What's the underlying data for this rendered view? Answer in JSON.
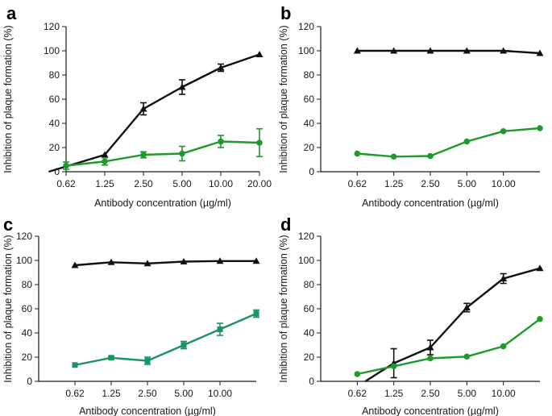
{
  "colors": {
    "black_series": "#111111",
    "green_series": "#1e9a2a",
    "teal_series": "#1a9463",
    "axis": "#1a1a1a"
  },
  "chart_data": [
    {
      "panel": "a",
      "type": "line",
      "xlabel": "Antibody concentration (µg/ml)",
      "ylabel": "Inhibition of plaque formation (%)",
      "categories": [
        "0.62",
        "1.25",
        "2.50",
        "5.00",
        "10.00",
        "20.00"
      ],
      "ylim": [
        0,
        120
      ],
      "yticks": [
        0,
        20,
        40,
        60,
        80,
        100,
        120
      ],
      "grid": false,
      "series": [
        {
          "color": "black",
          "marker": "triangle",
          "x": [
            -0.45,
            1,
            2,
            3,
            4,
            5
          ],
          "values": [
            0,
            14,
            52,
            70,
            86,
            97
          ],
          "errors": [
            null,
            null,
            5,
            6,
            3,
            null
          ]
        },
        {
          "color": "green",
          "marker": "circle",
          "x": [
            0,
            1,
            2,
            3,
            4,
            5
          ],
          "values": [
            5,
            8.5,
            14,
            15,
            25,
            24
          ],
          "errors": [
            3,
            3,
            2.5,
            6,
            5,
            11.5
          ]
        }
      ]
    },
    {
      "panel": "b",
      "type": "line",
      "xlabel": "Antibody concentration (µg/ml)",
      "ylabel": "Inhibition of plaque formation (%)",
      "categories": [
        "0.62",
        "1.25",
        "2.50",
        "5.00",
        "10.00"
      ],
      "ylim": [
        0,
        120
      ],
      "yticks": [
        0,
        20,
        40,
        60,
        80,
        100,
        120
      ],
      "grid": false,
      "series": [
        {
          "color": "black",
          "marker": "triangle",
          "x": [
            0,
            1,
            2,
            3,
            4,
            5
          ],
          "values": [
            100,
            100,
            100,
            100,
            100,
            98
          ],
          "errors": [
            null,
            null,
            null,
            null,
            null,
            null
          ]
        },
        {
          "color": "green",
          "marker": "circle",
          "x": [
            0,
            1,
            2,
            3,
            4,
            5
          ],
          "values": [
            15,
            12.5,
            13,
            25,
            33.5,
            36
          ],
          "errors": [
            null,
            null,
            null,
            null,
            null,
            null
          ]
        }
      ]
    },
    {
      "panel": "c",
      "type": "line",
      "xlabel": "Antibody concentration (µg/ml)",
      "ylabel": "Inhibition of plaque formation (%)",
      "categories": [
        "0.62",
        "1.25",
        "2.50",
        "5.00",
        "10.00"
      ],
      "ylim": [
        0,
        120
      ],
      "yticks": [
        0,
        20,
        40,
        60,
        80,
        100,
        120
      ],
      "grid": false,
      "series": [
        {
          "color": "black",
          "marker": "triangle",
          "x": [
            0,
            1,
            2,
            3,
            4,
            5
          ],
          "values": [
            96,
            98.5,
            97.5,
            99,
            99.5,
            99.5
          ],
          "errors": [
            null,
            null,
            null,
            null,
            null,
            null
          ]
        },
        {
          "color": "teal",
          "marker": "square",
          "x": [
            0,
            1,
            2,
            3,
            4,
            5
          ],
          "values": [
            13.5,
            19.5,
            17,
            30,
            43,
            56
          ],
          "errors": [
            null,
            1,
            3,
            3,
            5,
            3
          ]
        }
      ]
    },
    {
      "panel": "d",
      "type": "line",
      "xlabel": "Antibody concentration (µg/ml)",
      "ylabel": "Inhibition of plaque formation (%)",
      "categories": [
        "0.62",
        "1.25",
        "2.50",
        "5.00",
        "10.00"
      ],
      "ylim": [
        0,
        120
      ],
      "yticks": [
        0,
        20,
        40,
        60,
        80,
        100,
        120
      ],
      "grid": false,
      "series": [
        {
          "color": "black",
          "marker": "triangle",
          "x": [
            0.22,
            1,
            2,
            3,
            4,
            5
          ],
          "values": [
            0,
            15,
            28,
            61,
            85,
            93.5
          ],
          "errors": [
            null,
            12,
            6,
            3.5,
            4,
            null
          ]
        },
        {
          "color": "green",
          "marker": "circle",
          "x": [
            0,
            1,
            2,
            3,
            4,
            5
          ],
          "values": [
            6,
            12.5,
            19,
            20.5,
            29,
            51.5
          ],
          "errors": [
            null,
            null,
            null,
            null,
            null,
            null
          ]
        }
      ]
    }
  ]
}
